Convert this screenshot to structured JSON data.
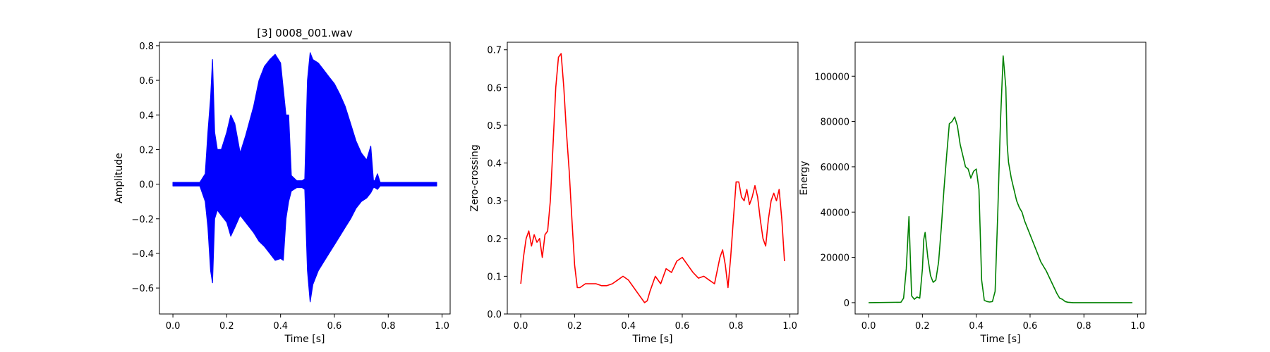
{
  "chart_data": [
    {
      "type": "line",
      "title": "[3] 0008_001.wav",
      "xlabel": "Time [s]",
      "ylabel": "Amplitude",
      "color": "#0000ff",
      "xlim": [
        -0.05,
        1.03
      ],
      "ylim": [
        -0.75,
        0.82
      ],
      "xticks": [
        0.0,
        0.2,
        0.4,
        0.6,
        0.8,
        1.0
      ],
      "xtick_labels": [
        "0.0",
        "0.2",
        "0.4",
        "0.6",
        "0.8",
        "1.0"
      ],
      "yticks": [
        -0.6,
        -0.4,
        -0.2,
        0.0,
        0.2,
        0.4,
        0.6,
        0.8
      ],
      "ytick_labels": [
        "−0.6",
        "−0.4",
        "−0.2",
        "0.0",
        "0.2",
        "0.4",
        "0.6",
        "0.8"
      ],
      "grid": false,
      "series": [
        {
          "style": "envelope",
          "x": [
            0.0,
            0.1,
            0.12,
            0.13,
            0.14,
            0.147,
            0.155,
            0.165,
            0.18,
            0.2,
            0.215,
            0.23,
            0.25,
            0.27,
            0.3,
            0.32,
            0.34,
            0.36,
            0.38,
            0.4,
            0.41,
            0.42,
            0.43,
            0.44,
            0.46,
            0.48,
            0.49,
            0.5,
            0.51,
            0.52,
            0.54,
            0.56,
            0.58,
            0.6,
            0.62,
            0.64,
            0.66,
            0.68,
            0.7,
            0.72,
            0.735,
            0.745,
            0.75,
            0.76,
            0.77,
            0.8,
            0.9,
            0.98
          ],
          "upper": [
            0.01,
            0.01,
            0.06,
            0.3,
            0.5,
            0.72,
            0.3,
            0.2,
            0.2,
            0.3,
            0.4,
            0.35,
            0.18,
            0.28,
            0.45,
            0.6,
            0.68,
            0.72,
            0.75,
            0.7,
            0.55,
            0.4,
            0.4,
            0.05,
            0.02,
            0.02,
            0.03,
            0.6,
            0.76,
            0.72,
            0.7,
            0.66,
            0.62,
            0.58,
            0.52,
            0.45,
            0.35,
            0.25,
            0.18,
            0.14,
            0.22,
            0.02,
            0.02,
            0.06,
            0.01,
            0.01,
            0.01,
            0.01
          ],
          "lower": [
            -0.01,
            -0.01,
            -0.1,
            -0.25,
            -0.5,
            -0.57,
            -0.2,
            -0.15,
            -0.18,
            -0.22,
            -0.3,
            -0.25,
            -0.18,
            -0.22,
            -0.28,
            -0.33,
            -0.36,
            -0.4,
            -0.44,
            -0.43,
            -0.44,
            -0.2,
            -0.1,
            -0.04,
            -0.02,
            -0.02,
            -0.03,
            -0.5,
            -0.68,
            -0.58,
            -0.5,
            -0.45,
            -0.4,
            -0.35,
            -0.3,
            -0.25,
            -0.2,
            -0.14,
            -0.1,
            -0.08,
            -0.05,
            -0.02,
            -0.02,
            -0.03,
            -0.01,
            -0.01,
            -0.01,
            -0.01
          ]
        }
      ]
    },
    {
      "type": "line",
      "title": "",
      "xlabel": "Time [s]",
      "ylabel": "Zero-crossing",
      "color": "#ff0000",
      "xlim": [
        -0.05,
        1.03
      ],
      "ylim": [
        0.0,
        0.72
      ],
      "xticks": [
        0.0,
        0.2,
        0.4,
        0.6,
        0.8,
        1.0
      ],
      "xtick_labels": [
        "0.0",
        "0.2",
        "0.4",
        "0.6",
        "0.8",
        "1.0"
      ],
      "yticks": [
        0.0,
        0.1,
        0.2,
        0.3,
        0.4,
        0.5,
        0.6,
        0.7
      ],
      "ytick_labels": [
        "0.0",
        "0.1",
        "0.2",
        "0.3",
        "0.4",
        "0.5",
        "0.6",
        "0.7"
      ],
      "grid": false,
      "series": [
        {
          "x": [
            0.0,
            0.01,
            0.02,
            0.03,
            0.04,
            0.05,
            0.06,
            0.07,
            0.08,
            0.09,
            0.1,
            0.11,
            0.12,
            0.13,
            0.14,
            0.15,
            0.16,
            0.17,
            0.18,
            0.19,
            0.2,
            0.21,
            0.22,
            0.24,
            0.26,
            0.28,
            0.3,
            0.32,
            0.34,
            0.36,
            0.38,
            0.4,
            0.42,
            0.44,
            0.46,
            0.47,
            0.48,
            0.5,
            0.52,
            0.54,
            0.56,
            0.58,
            0.6,
            0.62,
            0.64,
            0.66,
            0.68,
            0.7,
            0.72,
            0.74,
            0.75,
            0.76,
            0.77,
            0.78,
            0.79,
            0.8,
            0.81,
            0.82,
            0.83,
            0.84,
            0.85,
            0.86,
            0.87,
            0.88,
            0.89,
            0.9,
            0.91,
            0.92,
            0.93,
            0.94,
            0.95,
            0.96,
            0.97,
            0.98
          ],
          "y": [
            0.08,
            0.15,
            0.2,
            0.22,
            0.18,
            0.21,
            0.19,
            0.2,
            0.15,
            0.21,
            0.22,
            0.3,
            0.45,
            0.6,
            0.68,
            0.69,
            0.6,
            0.48,
            0.38,
            0.25,
            0.13,
            0.07,
            0.07,
            0.08,
            0.08,
            0.08,
            0.075,
            0.075,
            0.08,
            0.09,
            0.1,
            0.09,
            0.07,
            0.05,
            0.03,
            0.035,
            0.06,
            0.1,
            0.08,
            0.12,
            0.11,
            0.14,
            0.15,
            0.13,
            0.11,
            0.095,
            0.1,
            0.09,
            0.08,
            0.15,
            0.17,
            0.13,
            0.07,
            0.15,
            0.25,
            0.35,
            0.35,
            0.31,
            0.3,
            0.33,
            0.29,
            0.31,
            0.34,
            0.31,
            0.25,
            0.2,
            0.18,
            0.25,
            0.3,
            0.32,
            0.3,
            0.33,
            0.25,
            0.14
          ]
        }
      ]
    },
    {
      "type": "line",
      "title": "",
      "xlabel": "Time [s]",
      "ylabel": "Energy",
      "color": "#008000",
      "xlim": [
        -0.05,
        1.03
      ],
      "ylim": [
        -5000,
        115000
      ],
      "xticks": [
        0.0,
        0.2,
        0.4,
        0.6,
        0.8,
        1.0
      ],
      "xtick_labels": [
        "0.0",
        "0.2",
        "0.4",
        "0.6",
        "0.8",
        "1.0"
      ],
      "yticks": [
        0,
        20000,
        40000,
        60000,
        80000,
        100000
      ],
      "ytick_labels": [
        "0",
        "20000",
        "40000",
        "60000",
        "80000",
        "100000"
      ],
      "grid": false,
      "series": [
        {
          "x": [
            0.0,
            0.12,
            0.13,
            0.14,
            0.15,
            0.155,
            0.16,
            0.17,
            0.18,
            0.19,
            0.2,
            0.205,
            0.21,
            0.22,
            0.23,
            0.24,
            0.25,
            0.26,
            0.27,
            0.28,
            0.29,
            0.3,
            0.31,
            0.32,
            0.33,
            0.34,
            0.35,
            0.36,
            0.37,
            0.38,
            0.39,
            0.4,
            0.41,
            0.42,
            0.43,
            0.44,
            0.45,
            0.46,
            0.47,
            0.48,
            0.49,
            0.5,
            0.51,
            0.515,
            0.52,
            0.53,
            0.54,
            0.55,
            0.56,
            0.57,
            0.58,
            0.6,
            0.62,
            0.64,
            0.66,
            0.68,
            0.7,
            0.71,
            0.72,
            0.73,
            0.74,
            0.76,
            0.8,
            0.9,
            0.98
          ],
          "y": [
            0,
            200,
            2000,
            15000,
            38000,
            20000,
            3000,
            1500,
            2500,
            2000,
            15000,
            28000,
            31000,
            20000,
            12000,
            9000,
            10000,
            18000,
            33000,
            50000,
            65000,
            79000,
            80000,
            82000,
            78000,
            70000,
            65000,
            60000,
            59000,
            55000,
            58000,
            59000,
            50000,
            10000,
            1000,
            500,
            300,
            500,
            5000,
            40000,
            80000,
            109000,
            95000,
            70000,
            62000,
            55000,
            50000,
            45000,
            42000,
            40000,
            36000,
            30000,
            24000,
            18000,
            14000,
            9000,
            4000,
            2000,
            1500,
            500,
            200,
            0,
            0,
            0,
            0
          ]
        }
      ]
    }
  ]
}
